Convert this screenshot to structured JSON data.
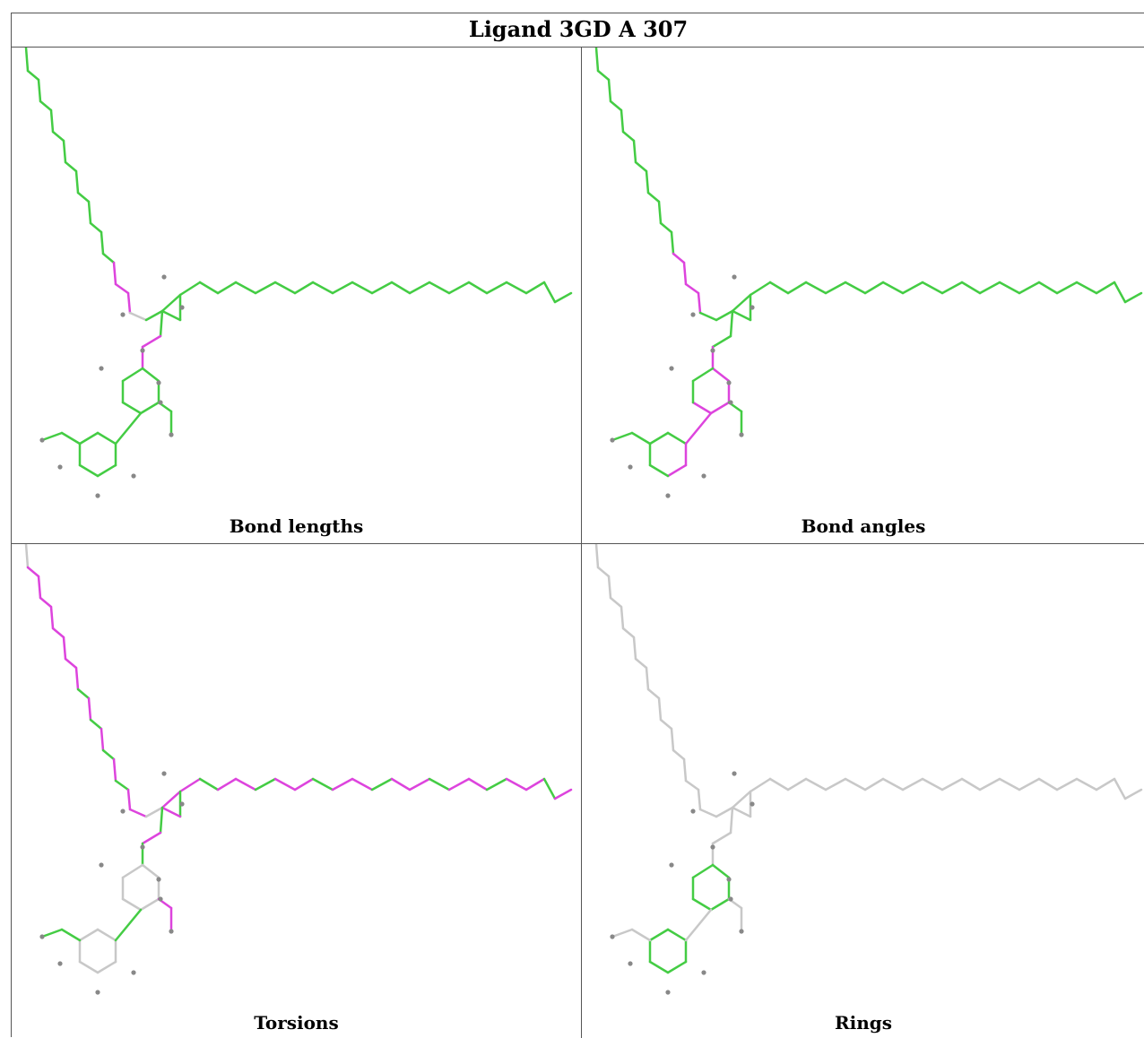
{
  "title": "Ligand 3GD A 307",
  "panels": [
    {
      "caption": "Bond lengths"
    },
    {
      "caption": "Bond angles"
    },
    {
      "caption": "Torsions"
    },
    {
      "caption": "Rings"
    }
  ],
  "colors": {
    "ok": "#44cc44",
    "outlier": "#dd44dd",
    "neutral": "#c8c8c8",
    "atom": "#888888",
    "border": "#555555"
  }
}
